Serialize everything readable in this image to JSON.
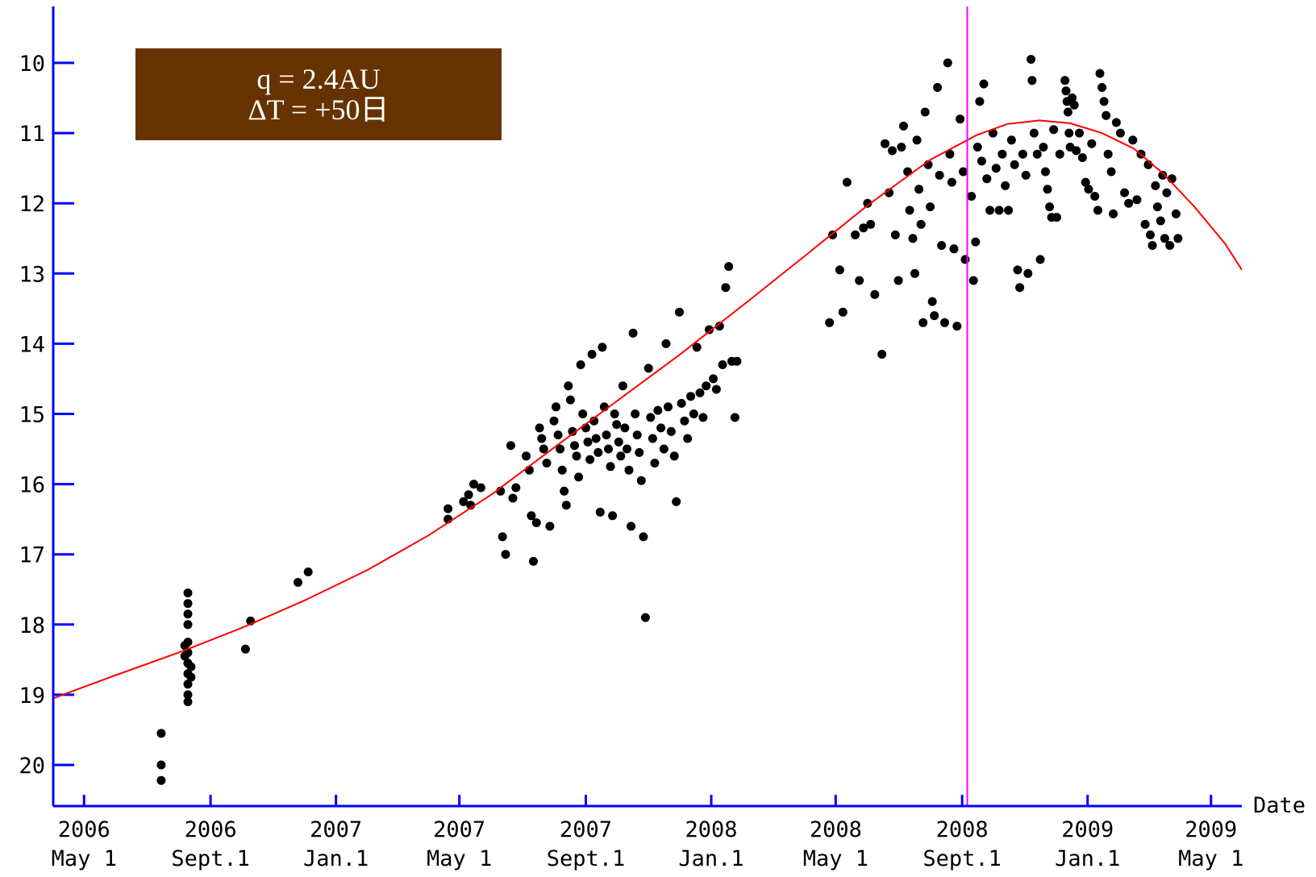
{
  "chart_data": {
    "type": "scatter",
    "x_axis": {
      "label": "Date",
      "min": "2006-04-01",
      "max": "2009-05-31",
      "ticks": [
        {
          "date": "2006-05-01",
          "year": "2006",
          "day": "May 1"
        },
        {
          "date": "2006-09-01",
          "year": "2006",
          "day": "Sept.1"
        },
        {
          "date": "2007-01-01",
          "year": "2007",
          "day": "Jan.1"
        },
        {
          "date": "2007-05-01",
          "year": "2007",
          "day": "May 1"
        },
        {
          "date": "2007-09-01",
          "year": "2007",
          "day": "Sept.1"
        },
        {
          "date": "2008-01-01",
          "year": "2008",
          "day": "Jan.1"
        },
        {
          "date": "2008-05-01",
          "year": "2008",
          "day": "May 1"
        },
        {
          "date": "2008-09-01",
          "year": "2008",
          "day": "Sept.1"
        },
        {
          "date": "2009-01-01",
          "year": "2009",
          "day": "Jan.1"
        },
        {
          "date": "2009-05-01",
          "year": "2009",
          "day": "May 1"
        }
      ]
    },
    "y_axis": {
      "ticks": [
        10,
        11,
        12,
        13,
        14,
        15,
        16,
        17,
        18,
        19,
        20
      ],
      "range": [
        9.2,
        20.6
      ],
      "inverted": true
    },
    "annotation": {
      "line1": "q = 2.4AU",
      "line2": "ΔT = +50日",
      "color": "#663300"
    },
    "vertical_marker": {
      "date": "2008-09-06",
      "color": "#ff00ff"
    },
    "curve": {
      "color": "#ff0000",
      "points": [
        [
          "2006-04-01",
          19.05
        ],
        [
          "2006-06-01",
          18.72
        ],
        [
          "2006-08-01",
          18.4
        ],
        [
          "2006-10-01",
          18.05
        ],
        [
          "2006-12-01",
          17.66
        ],
        [
          "2007-02-01",
          17.22
        ],
        [
          "2007-04-01",
          16.73
        ],
        [
          "2007-06-01",
          16.15
        ],
        [
          "2007-08-01",
          15.48
        ],
        [
          "2007-10-01",
          14.82
        ],
        [
          "2007-12-01",
          14.16
        ],
        [
          "2008-02-01",
          13.45
        ],
        [
          "2008-04-01",
          12.75
        ],
        [
          "2008-06-01",
          12.03
        ],
        [
          "2008-08-01",
          11.38
        ],
        [
          "2008-09-15",
          11.03
        ],
        [
          "2008-10-15",
          10.87
        ],
        [
          "2008-11-15",
          10.82
        ],
        [
          "2008-12-15",
          10.86
        ],
        [
          "2009-01-15",
          11.0
        ],
        [
          "2009-02-15",
          11.22
        ],
        [
          "2009-03-15",
          11.57
        ],
        [
          "2009-04-15",
          12.05
        ],
        [
          "2009-05-15",
          12.58
        ],
        [
          "2009-05-31",
          12.95
        ]
      ]
    },
    "points_color": "#000000",
    "points": [
      [
        "2006-07-15",
        19.55
      ],
      [
        "2006-07-15",
        20.0
      ],
      [
        "2006-07-15",
        20.22
      ],
      [
        "2006-08-10",
        17.55
      ],
      [
        "2006-08-10",
        17.7
      ],
      [
        "2006-08-10",
        17.85
      ],
      [
        "2006-08-10",
        18.0
      ],
      [
        "2006-08-10",
        18.25
      ],
      [
        "2006-08-10",
        18.4
      ],
      [
        "2006-08-10",
        18.55
      ],
      [
        "2006-08-10",
        18.7
      ],
      [
        "2006-08-10",
        18.85
      ],
      [
        "2006-08-10",
        19.0
      ],
      [
        "2006-08-10",
        19.1
      ],
      [
        "2006-08-07",
        18.3
      ],
      [
        "2006-08-07",
        18.45
      ],
      [
        "2006-08-13",
        18.6
      ],
      [
        "2006-08-13",
        18.75
      ],
      [
        "2006-10-05",
        18.35
      ],
      [
        "2006-10-10",
        17.95
      ],
      [
        "2006-11-25",
        17.4
      ],
      [
        "2006-12-05",
        17.25
      ],
      [
        "2007-04-20",
        16.5
      ],
      [
        "2007-04-20",
        16.35
      ],
      [
        "2007-05-05",
        16.25
      ],
      [
        "2007-05-10",
        16.15
      ],
      [
        "2007-05-15",
        16.0
      ],
      [
        "2007-05-22",
        16.05
      ],
      [
        "2007-05-12",
        16.3
      ],
      [
        "2007-06-10",
        16.1
      ],
      [
        "2007-06-12",
        16.75
      ],
      [
        "2007-06-15",
        17.0
      ],
      [
        "2007-06-20",
        15.45
      ],
      [
        "2007-06-22",
        16.2
      ],
      [
        "2007-06-25",
        16.05
      ],
      [
        "2007-07-05",
        15.6
      ],
      [
        "2007-07-08",
        15.8
      ],
      [
        "2007-07-10",
        16.45
      ],
      [
        "2007-07-12",
        17.1
      ],
      [
        "2007-07-15",
        16.55
      ],
      [
        "2007-07-18",
        15.2
      ],
      [
        "2007-07-20",
        15.35
      ],
      [
        "2007-07-22",
        15.5
      ],
      [
        "2007-07-25",
        15.7
      ],
      [
        "2007-07-28",
        16.6
      ],
      [
        "2007-08-01",
        15.1
      ],
      [
        "2007-08-03",
        14.9
      ],
      [
        "2007-08-05",
        15.3
      ],
      [
        "2007-08-07",
        15.5
      ],
      [
        "2007-08-09",
        15.8
      ],
      [
        "2007-08-11",
        16.1
      ],
      [
        "2007-08-13",
        16.3
      ],
      [
        "2007-08-15",
        14.6
      ],
      [
        "2007-08-17",
        14.8
      ],
      [
        "2007-08-19",
        15.25
      ],
      [
        "2007-08-21",
        15.45
      ],
      [
        "2007-08-23",
        15.6
      ],
      [
        "2007-08-25",
        15.9
      ],
      [
        "2007-08-27",
        14.3
      ],
      [
        "2007-08-29",
        15.0
      ],
      [
        "2007-09-01",
        15.2
      ],
      [
        "2007-09-03",
        15.4
      ],
      [
        "2007-09-05",
        15.65
      ],
      [
        "2007-09-07",
        14.15
      ],
      [
        "2007-09-09",
        15.1
      ],
      [
        "2007-09-11",
        15.35
      ],
      [
        "2007-09-13",
        15.55
      ],
      [
        "2007-09-15",
        16.4
      ],
      [
        "2007-09-17",
        14.05
      ],
      [
        "2007-09-19",
        14.9
      ],
      [
        "2007-09-21",
        15.3
      ],
      [
        "2007-09-23",
        15.5
      ],
      [
        "2007-09-25",
        15.75
      ],
      [
        "2007-09-27",
        16.45
      ],
      [
        "2007-09-29",
        15.0
      ],
      [
        "2007-10-01",
        15.15
      ],
      [
        "2007-10-03",
        15.4
      ],
      [
        "2007-10-05",
        15.6
      ],
      [
        "2007-10-07",
        14.6
      ],
      [
        "2007-10-09",
        15.2
      ],
      [
        "2007-10-11",
        15.5
      ],
      [
        "2007-10-13",
        15.8
      ],
      [
        "2007-10-15",
        16.6
      ],
      [
        "2007-10-17",
        13.85
      ],
      [
        "2007-10-19",
        15.0
      ],
      [
        "2007-10-21",
        15.3
      ],
      [
        "2007-10-23",
        15.55
      ],
      [
        "2007-10-25",
        15.95
      ],
      [
        "2007-10-27",
        16.75
      ],
      [
        "2007-10-29",
        17.9
      ],
      [
        "2007-11-01",
        14.35
      ],
      [
        "2007-11-03",
        15.05
      ],
      [
        "2007-11-05",
        15.35
      ],
      [
        "2007-11-07",
        15.7
      ],
      [
        "2007-11-10",
        14.95
      ],
      [
        "2007-11-13",
        15.2
      ],
      [
        "2007-11-16",
        15.5
      ],
      [
        "2007-11-18",
        14.0
      ],
      [
        "2007-11-20",
        14.9
      ],
      [
        "2007-11-23",
        15.25
      ],
      [
        "2007-11-26",
        15.6
      ],
      [
        "2007-11-28",
        16.25
      ],
      [
        "2007-12-01",
        13.55
      ],
      [
        "2007-12-03",
        14.85
      ],
      [
        "2007-12-06",
        15.1
      ],
      [
        "2007-12-09",
        15.35
      ],
      [
        "2007-12-12",
        14.75
      ],
      [
        "2007-12-15",
        15.0
      ],
      [
        "2007-12-18",
        14.05
      ],
      [
        "2007-12-21",
        14.7
      ],
      [
        "2007-12-24",
        15.05
      ],
      [
        "2007-12-27",
        14.6
      ],
      [
        "2007-12-30",
        13.8
      ],
      [
        "2008-01-03",
        14.5
      ],
      [
        "2008-01-06",
        14.65
      ],
      [
        "2008-01-09",
        13.75
      ],
      [
        "2008-01-12",
        14.3
      ],
      [
        "2008-01-15",
        13.2
      ],
      [
        "2008-01-18",
        12.9
      ],
      [
        "2008-01-21",
        14.25
      ],
      [
        "2008-01-24",
        15.05
      ],
      [
        "2008-01-26",
        14.25
      ],
      [
        "2008-04-25",
        13.7
      ],
      [
        "2008-04-28",
        12.45
      ],
      [
        "2008-05-05",
        12.95
      ],
      [
        "2008-05-08",
        13.55
      ],
      [
        "2008-05-12",
        11.7
      ],
      [
        "2008-05-20",
        12.45
      ],
      [
        "2008-05-24",
        13.1
      ],
      [
        "2008-05-28",
        12.35
      ],
      [
        "2008-06-01",
        12.0
      ],
      [
        "2008-06-04",
        12.3
      ],
      [
        "2008-06-08",
        13.3
      ],
      [
        "2008-06-15",
        14.15
      ],
      [
        "2008-06-18",
        11.15
      ],
      [
        "2008-06-22",
        11.85
      ],
      [
        "2008-06-25",
        11.25
      ],
      [
        "2008-06-28",
        12.45
      ],
      [
        "2008-07-01",
        13.1
      ],
      [
        "2008-07-04",
        11.2
      ],
      [
        "2008-07-06",
        10.9
      ],
      [
        "2008-07-10",
        11.55
      ],
      [
        "2008-07-12",
        12.1
      ],
      [
        "2008-07-15",
        12.5
      ],
      [
        "2008-07-17",
        13.0
      ],
      [
        "2008-07-19",
        11.1
      ],
      [
        "2008-07-21",
        11.8
      ],
      [
        "2008-07-23",
        12.3
      ],
      [
        "2008-07-25",
        13.7
      ],
      [
        "2008-07-27",
        10.7
      ],
      [
        "2008-07-30",
        11.45
      ],
      [
        "2008-08-01",
        12.05
      ],
      [
        "2008-08-03",
        13.4
      ],
      [
        "2008-08-05",
        13.6
      ],
      [
        "2008-08-08",
        10.35
      ],
      [
        "2008-08-10",
        11.6
      ],
      [
        "2008-08-12",
        12.6
      ],
      [
        "2008-08-15",
        13.7
      ],
      [
        "2008-08-18",
        10.0
      ],
      [
        "2008-08-20",
        11.3
      ],
      [
        "2008-08-22",
        11.7
      ],
      [
        "2008-08-24",
        12.65
      ],
      [
        "2008-08-27",
        13.75
      ],
      [
        "2008-08-30",
        10.8
      ],
      [
        "2008-09-02",
        11.55
      ],
      [
        "2008-09-04",
        12.8
      ],
      [
        "2008-09-10",
        11.9
      ],
      [
        "2008-09-12",
        13.1
      ],
      [
        "2008-09-14",
        12.55
      ],
      [
        "2008-09-16",
        11.2
      ],
      [
        "2008-09-18",
        10.55
      ],
      [
        "2008-09-20",
        11.4
      ],
      [
        "2008-09-22",
        10.3
      ],
      [
        "2008-09-25",
        11.65
      ],
      [
        "2008-09-28",
        12.1
      ],
      [
        "2008-10-01",
        11.0
      ],
      [
        "2008-10-04",
        11.5
      ],
      [
        "2008-10-07",
        12.1
      ],
      [
        "2008-10-10",
        11.3
      ],
      [
        "2008-10-13",
        11.75
      ],
      [
        "2008-10-16",
        12.1
      ],
      [
        "2008-10-19",
        11.1
      ],
      [
        "2008-10-22",
        11.45
      ],
      [
        "2008-10-25",
        12.95
      ],
      [
        "2008-10-27",
        13.2
      ],
      [
        "2008-10-30",
        11.3
      ],
      [
        "2008-11-02",
        11.6
      ],
      [
        "2008-11-04",
        13.0
      ],
      [
        "2008-11-07",
        9.95
      ],
      [
        "2008-11-08",
        10.25
      ],
      [
        "2008-11-10",
        11.0
      ],
      [
        "2008-11-13",
        11.3
      ],
      [
        "2008-11-16",
        12.8
      ],
      [
        "2008-11-19",
        11.2
      ],
      [
        "2008-11-21",
        11.55
      ],
      [
        "2008-11-23",
        11.8
      ],
      [
        "2008-11-25",
        12.05
      ],
      [
        "2008-11-27",
        12.2
      ],
      [
        "2008-11-29",
        10.95
      ],
      [
        "2008-12-02",
        12.2
      ],
      [
        "2008-12-05",
        11.3
      ],
      [
        "2008-12-10",
        10.25
      ],
      [
        "2008-12-11",
        10.4
      ],
      [
        "2008-12-12",
        10.55
      ],
      [
        "2008-12-13",
        10.7
      ],
      [
        "2008-12-14",
        11.0
      ],
      [
        "2008-12-15",
        11.2
      ],
      [
        "2008-12-17",
        10.5
      ],
      [
        "2008-12-19",
        10.6
      ],
      [
        "2008-12-21",
        11.25
      ],
      [
        "2008-12-24",
        11.0
      ],
      [
        "2008-12-27",
        11.35
      ],
      [
        "2008-12-30",
        11.7
      ],
      [
        "2009-01-02",
        11.8
      ],
      [
        "2009-01-05",
        11.15
      ],
      [
        "2009-01-08",
        11.9
      ],
      [
        "2009-01-11",
        12.1
      ],
      [
        "2009-01-13",
        10.15
      ],
      [
        "2009-01-15",
        10.35
      ],
      [
        "2009-01-17",
        10.55
      ],
      [
        "2009-01-19",
        10.75
      ],
      [
        "2009-01-21",
        11.3
      ],
      [
        "2009-01-24",
        11.55
      ],
      [
        "2009-01-26",
        12.15
      ],
      [
        "2009-01-29",
        10.85
      ],
      [
        "2009-02-02",
        11.0
      ],
      [
        "2009-02-06",
        11.85
      ],
      [
        "2009-02-10",
        12.0
      ],
      [
        "2009-02-14",
        11.1
      ],
      [
        "2009-02-18",
        11.95
      ],
      [
        "2009-02-22",
        11.3
      ],
      [
        "2009-02-26",
        12.3
      ],
      [
        "2009-03-01",
        11.45
      ],
      [
        "2009-03-03",
        12.45
      ],
      [
        "2009-03-05",
        12.6
      ],
      [
        "2009-03-08",
        11.75
      ],
      [
        "2009-03-10",
        12.05
      ],
      [
        "2009-03-13",
        12.25
      ],
      [
        "2009-03-15",
        11.6
      ],
      [
        "2009-03-17",
        12.5
      ],
      [
        "2009-03-19",
        11.85
      ],
      [
        "2009-03-22",
        12.6
      ],
      [
        "2009-03-24",
        11.65
      ],
      [
        "2009-03-28",
        12.15
      ],
      [
        "2009-03-30",
        12.5
      ]
    ]
  }
}
